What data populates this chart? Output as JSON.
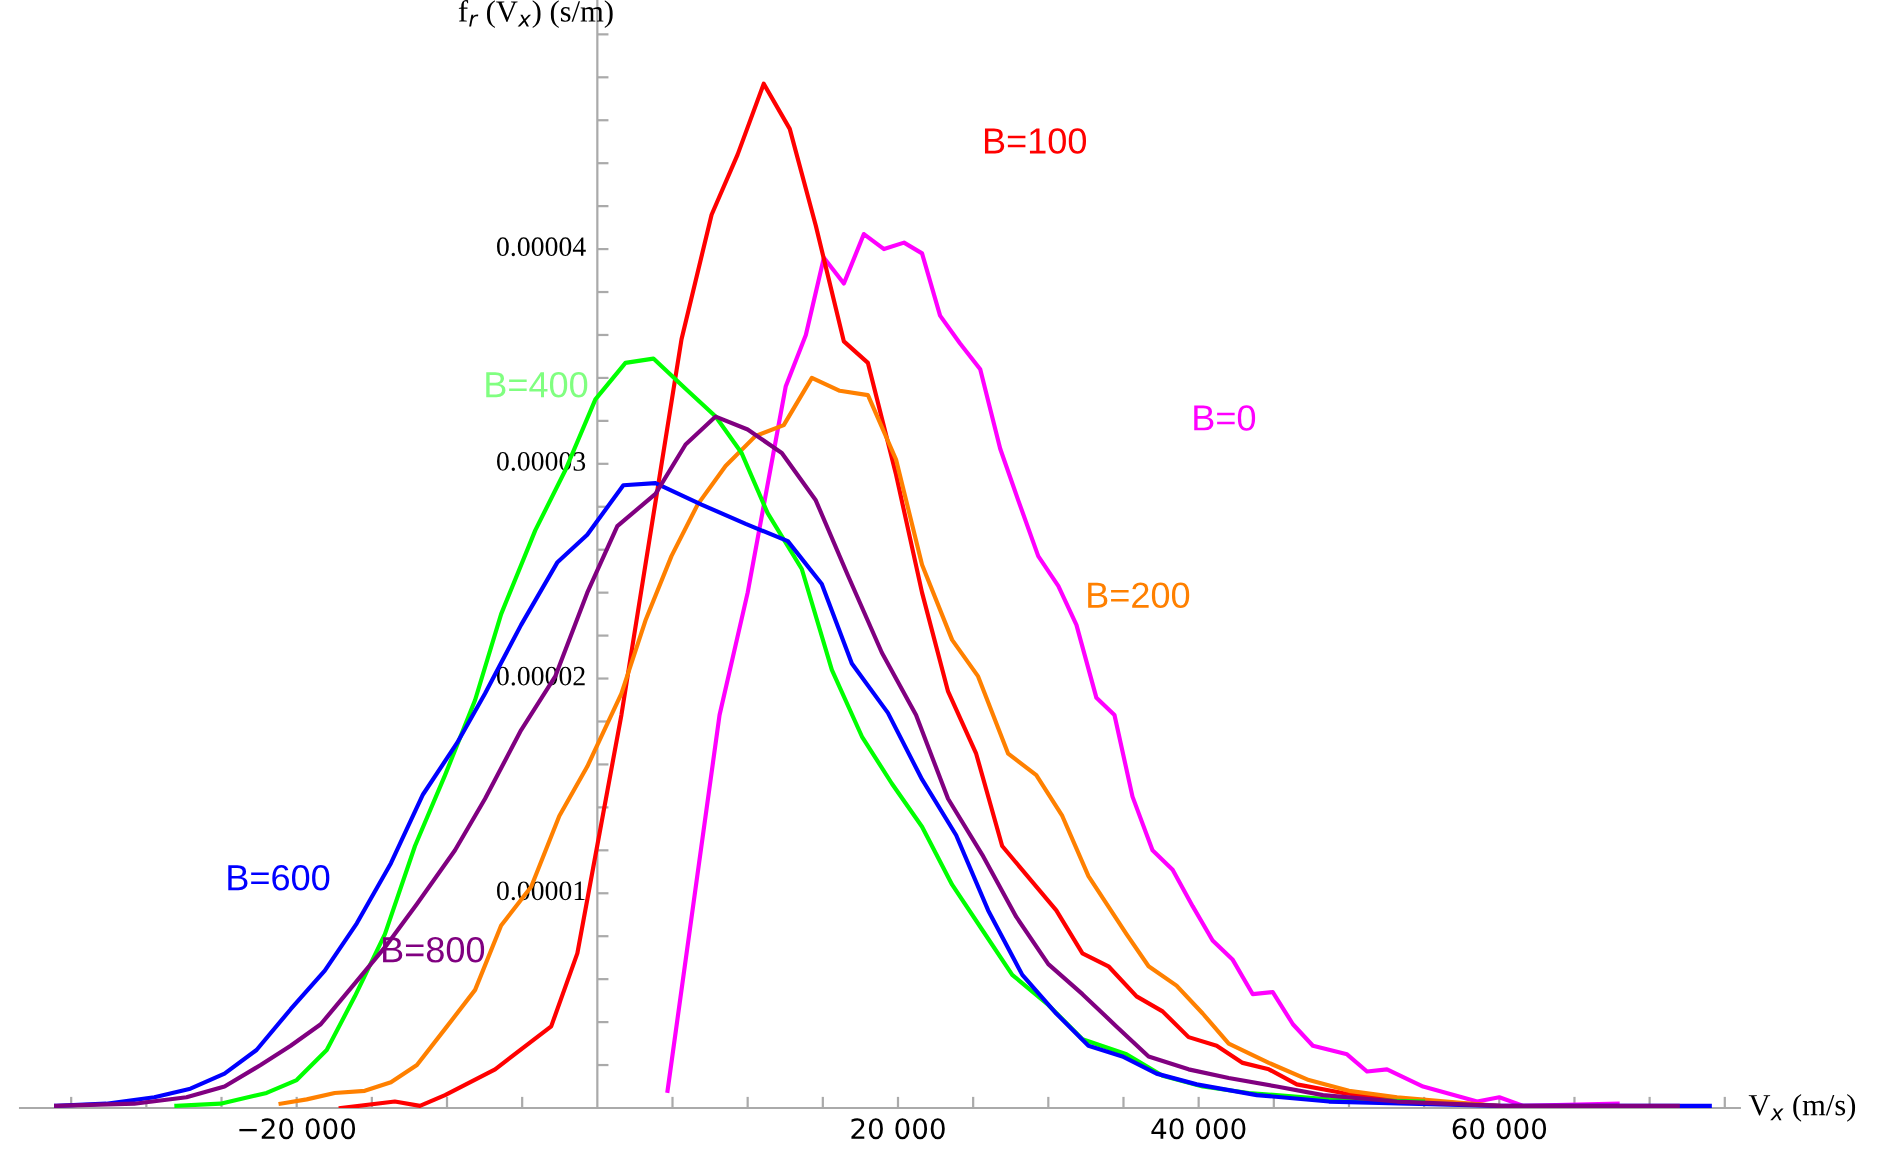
{
  "chart_data": {
    "type": "line",
    "xlabel": "V$_{x}$ (m/s)",
    "ylabel": "f$_{r}$ (V$_{x}$) (s/m)",
    "xlim": [
      -38400,
      76000
    ],
    "ylim": [
      0,
      5.16e-05
    ],
    "xticks": [
      {
        "value": -35000,
        "label": null
      },
      {
        "value": -30000,
        "label": null
      },
      {
        "value": -25000,
        "label": null
      },
      {
        "value": -20000,
        "label": "−20 000"
      },
      {
        "value": -15000,
        "label": null
      },
      {
        "value": -10000,
        "label": null
      },
      {
        "value": -5000,
        "label": null
      },
      {
        "value": 5000,
        "label": null
      },
      {
        "value": 10000,
        "label": null
      },
      {
        "value": 15000,
        "label": null
      },
      {
        "value": 20000,
        "label": "20 000"
      },
      {
        "value": 25000,
        "label": null
      },
      {
        "value": 30000,
        "label": null
      },
      {
        "value": 35000,
        "label": null
      },
      {
        "value": 40000,
        "label": "40 000"
      },
      {
        "value": 45000,
        "label": null
      },
      {
        "value": 50000,
        "label": null
      },
      {
        "value": 55000,
        "label": null
      },
      {
        "value": 60000,
        "label": "60 000"
      },
      {
        "value": 65000,
        "label": null
      },
      {
        "value": 70000,
        "label": null
      },
      {
        "value": 75000,
        "label": null
      }
    ],
    "yticks": [
      {
        "value": 2e-06,
        "label": null
      },
      {
        "value": 4e-06,
        "label": null
      },
      {
        "value": 6e-06,
        "label": null
      },
      {
        "value": 8e-06,
        "label": null
      },
      {
        "value": 1e-05,
        "label": "0.00001"
      },
      {
        "value": 1.2e-05,
        "label": null
      },
      {
        "value": 1.4e-05,
        "label": null
      },
      {
        "value": 1.6e-05,
        "label": null
      },
      {
        "value": 1.8e-05,
        "label": null
      },
      {
        "value": 2e-05,
        "label": "0.00002"
      },
      {
        "value": 2.2e-05,
        "label": null
      },
      {
        "value": 2.4e-05,
        "label": null
      },
      {
        "value": 2.6e-05,
        "label": null
      },
      {
        "value": 2.8e-05,
        "label": null
      },
      {
        "value": 3e-05,
        "label": "0.00003"
      },
      {
        "value": 3.2e-05,
        "label": null
      },
      {
        "value": 3.4e-05,
        "label": null
      },
      {
        "value": 3.6e-05,
        "label": null
      },
      {
        "value": 3.8e-05,
        "label": null
      },
      {
        "value": 4e-05,
        "label": "0.00004"
      },
      {
        "value": 4.2e-05,
        "label": null
      },
      {
        "value": 4.4e-05,
        "label": null
      },
      {
        "value": 4.6e-05,
        "label": null
      },
      {
        "value": 4.8e-05,
        "label": null
      },
      {
        "value": 5e-05,
        "label": null
      }
    ],
    "grid": false,
    "legend": false,
    "marker": "none",
    "line_style": "solid",
    "series": [
      {
        "name": "B=0",
        "color": "#ff00ff",
        "x": [
          4670,
          8130,
          10000,
          12530,
          13870,
          15070,
          16400,
          17730,
          19070,
          20400,
          21600,
          22800,
          24130,
          25470,
          26800,
          28000,
          29330,
          30670,
          31870,
          33200,
          34400,
          35600,
          36930,
          38270,
          39600,
          40930,
          42270,
          43600,
          44930,
          46270,
          47600,
          49870,
          51200,
          52530,
          54930,
          58530,
          60000,
          61600,
          67870
        ],
        "values": [
          8e-07,
          1.83e-05,
          2.4e-05,
          3.36e-05,
          3.6e-05,
          3.96e-05,
          3.84e-05,
          4.07e-05,
          4e-05,
          4.03e-05,
          3.98e-05,
          3.69e-05,
          3.56e-05,
          3.44e-05,
          3.07e-05,
          2.83e-05,
          2.57e-05,
          2.43e-05,
          2.25e-05,
          1.91e-05,
          1.83e-05,
          1.45e-05,
          1.2e-05,
          1.11e-05,
          9.4e-06,
          7.8e-06,
          6.9e-06,
          5.3e-06,
          5.4e-06,
          3.9e-06,
          2.9e-06,
          2.5e-06,
          1.7e-06,
          1.8e-06,
          1e-06,
          3e-07,
          5e-07,
          1e-07,
          2e-07
        ]
      },
      {
        "name": "B=100",
        "color": "#ff0000",
        "x": [
          -17070,
          -13470,
          -11800,
          -10130,
          -6800,
          -3070,
          -1330,
          1600,
          5600,
          7600,
          9330,
          11070,
          12800,
          14530,
          16400,
          18000,
          19870,
          21600,
          23330,
          25200,
          26930,
          30530,
          32270,
          34000,
          35870,
          37600,
          39330,
          41200,
          42930,
          44670,
          46530,
          49600,
          53200,
          60000
        ],
        "values": [
          0,
          3e-07,
          1e-07,
          6e-07,
          1.8e-06,
          3.8e-06,
          7.2e-06,
          1.83e-05,
          3.58e-05,
          4.16e-05,
          4.44e-05,
          4.77e-05,
          4.56e-05,
          4.11e-05,
          3.57e-05,
          3.47e-05,
          2.95e-05,
          2.4e-05,
          1.94e-05,
          1.65e-05,
          1.22e-05,
          9.2e-06,
          7.2e-06,
          6.6e-06,
          5.2e-06,
          4.5e-06,
          3.3e-06,
          2.9e-06,
          2.1e-06,
          1.8e-06,
          1.1e-06,
          7e-07,
          4e-07,
          1e-07
        ]
      },
      {
        "name": "B=200",
        "color": "#ff8000",
        "x": [
          -21070,
          -19330,
          -17470,
          -15470,
          -13730,
          -12000,
          -10000,
          -8130,
          -6400,
          -4400,
          -2530,
          -670,
          1600,
          3200,
          4930,
          6670,
          8530,
          10530,
          12400,
          14270,
          16130,
          18000,
          19870,
          21600,
          23600,
          25330,
          27330,
          29200,
          30930,
          32670,
          35200,
          36670,
          38530,
          40270,
          42000,
          44670,
          47330,
          50000,
          53200,
          58000,
          60000
        ],
        "values": [
          2e-07,
          4e-07,
          7e-07,
          8e-07,
          1.2e-06,
          2e-06,
          3.8e-06,
          5.5e-06,
          8.5e-06,
          1.03e-05,
          1.36e-05,
          1.59e-05,
          1.93e-05,
          2.27e-05,
          2.57e-05,
          2.81e-05,
          2.99e-05,
          3.13e-05,
          3.18e-05,
          3.4e-05,
          3.34e-05,
          3.32e-05,
          3.02e-05,
          2.53e-05,
          2.18e-05,
          2.01e-05,
          1.65e-05,
          1.55e-05,
          1.36e-05,
          1.08e-05,
          8.1e-06,
          6.6e-06,
          5.7e-06,
          4.4e-06,
          3e-06,
          2.1e-06,
          1.3e-06,
          8e-07,
          5e-07,
          2e-07,
          1e-07
        ]
      },
      {
        "name": "B=400",
        "color": "#00ff00",
        "x": [
          -28000,
          -25070,
          -22000,
          -20000,
          -18000,
          -16130,
          -14130,
          -12130,
          -10130,
          -8130,
          -6400,
          -4130,
          -2130,
          -130,
          1870,
          3730,
          5870,
          7870,
          9600,
          11330,
          13600,
          15600,
          17600,
          19600,
          21600,
          23600,
          25600,
          27600,
          30000,
          32270,
          35200,
          37600,
          40270,
          43330,
          48670,
          54930
        ],
        "values": [
          1e-07,
          2e-07,
          7e-07,
          1.3e-06,
          2.7e-06,
          5.2e-06,
          8.1e-06,
          1.22e-05,
          1.55e-05,
          1.9e-05,
          2.3e-05,
          2.69e-05,
          2.97e-05,
          3.3e-05,
          3.47e-05,
          3.49e-05,
          3.35e-05,
          3.22e-05,
          3.05e-05,
          2.77e-05,
          2.51e-05,
          2.04e-05,
          1.73e-05,
          1.51e-05,
          1.31e-05,
          1.04e-05,
          8.3e-06,
          6.2e-06,
          4.8e-06,
          3.2e-06,
          2.5e-06,
          1.5e-06,
          1e-06,
          7e-07,
          4e-07,
          3e-07
        ]
      },
      {
        "name": "B=600",
        "color": "#0000ff",
        "x": [
          -36000,
          -32670,
          -29470,
          -27070,
          -24800,
          -22670,
          -20400,
          -18130,
          -16000,
          -13730,
          -11600,
          -9330,
          -7470,
          -5070,
          -2670,
          -670,
          1730,
          3870,
          6930,
          9870,
          12670,
          14930,
          16930,
          19330,
          21600,
          23870,
          26000,
          28270,
          30530,
          32670,
          34930,
          37200,
          39870,
          43870,
          48670,
          60000,
          74000
        ],
        "values": [
          1e-07,
          2e-07,
          5e-07,
          9e-07,
          1.6e-06,
          2.7e-06,
          4.6e-06,
          6.4e-06,
          8.6e-06,
          1.14e-05,
          1.46e-05,
          1.7e-05,
          1.93e-05,
          2.25e-05,
          2.54e-05,
          2.67e-05,
          2.9e-05,
          2.91e-05,
          2.81e-05,
          2.72e-05,
          2.64e-05,
          2.44e-05,
          2.07e-05,
          1.84e-05,
          1.53e-05,
          1.27e-05,
          9.2e-06,
          6.2e-06,
          4.4e-06,
          2.9e-06,
          2.4e-06,
          1.6e-06,
          1.1e-06,
          6e-07,
          3e-07,
          1e-07,
          1e-07
        ]
      },
      {
        "name": "B=800",
        "color": "#800080",
        "x": [
          -36000,
          -30800,
          -27330,
          -24800,
          -22400,
          -20400,
          -18400,
          -16130,
          -14000,
          -12000,
          -9470,
          -7470,
          -5070,
          -2800,
          -670,
          1330,
          3870,
          5870,
          7870,
          10000,
          12270,
          14530,
          16670,
          18930,
          21200,
          23330,
          25600,
          27870,
          30000,
          32270,
          34530,
          36670,
          39330,
          42000,
          45200,
          48270,
          53200,
          60000,
          71870
        ],
        "values": [
          1e-07,
          2e-07,
          5e-07,
          1e-06,
          2e-06,
          2.9e-06,
          3.9e-06,
          5.8e-06,
          7.6e-06,
          9.5e-06,
          1.2e-05,
          1.44e-05,
          1.76e-05,
          2.01e-05,
          2.4e-05,
          2.71e-05,
          2.86e-05,
          3.09e-05,
          3.22e-05,
          3.16e-05,
          3.05e-05,
          2.83e-05,
          2.48e-05,
          2.12e-05,
          1.83e-05,
          1.44e-05,
          1.18e-05,
          8.9e-06,
          6.7e-06,
          5.3e-06,
          3.8e-06,
          2.4e-06,
          1.8e-06,
          1.4e-06,
          1e-06,
          6e-07,
          3e-07,
          1e-07,
          1e-07
        ]
      }
    ]
  }
}
